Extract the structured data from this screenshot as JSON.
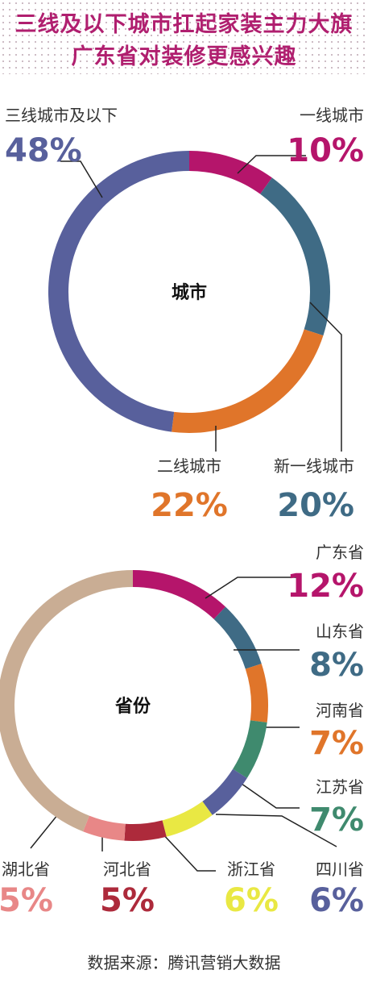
{
  "header": {
    "line1": "三线及以下城市扛起家装主力大旗",
    "line2": "广东省对装修更感兴趣"
  },
  "chart_data": [
    {
      "type": "pie",
      "center_label": "城市",
      "slices": [
        {
          "label": "一线城市",
          "value": 10,
          "value_text": "10%",
          "color": "#b5156b"
        },
        {
          "label": "新一线城市",
          "value": 20,
          "value_text": "20%",
          "color": "#3f6b85"
        },
        {
          "label": "二线城市",
          "value": 22,
          "value_text": "22%",
          "color": "#e0752a"
        },
        {
          "label": "三线城市及以下",
          "value": 48,
          "value_text": "48%",
          "color": "#58609c"
        }
      ]
    },
    {
      "type": "pie",
      "center_label": "省份",
      "slices": [
        {
          "label": "广东省",
          "value": 12,
          "value_text": "12%",
          "color": "#b5156b"
        },
        {
          "label": "山东省",
          "value": 8,
          "value_text": "8%",
          "color": "#3f6b85"
        },
        {
          "label": "河南省",
          "value": 7,
          "value_text": "7%",
          "color": "#e0752a"
        },
        {
          "label": "江苏省",
          "value": 7,
          "value_text": "7%",
          "color": "#3f8a6e"
        },
        {
          "label": "四川省",
          "value": 6,
          "value_text": "6%",
          "color": "#58609c"
        },
        {
          "label": "浙江省",
          "value": 6,
          "value_text": "6%",
          "color": "#e9e843"
        },
        {
          "label": "河北省",
          "value": 5,
          "value_text": "5%",
          "color": "#ad2a3b"
        },
        {
          "label": "湖北省",
          "value": 5,
          "value_text": "5%",
          "color": "#e88787"
        },
        {
          "label": "",
          "value": 44,
          "color": "#c9ad94"
        }
      ]
    }
  ],
  "source": "数据来源：腾讯营销大数据"
}
